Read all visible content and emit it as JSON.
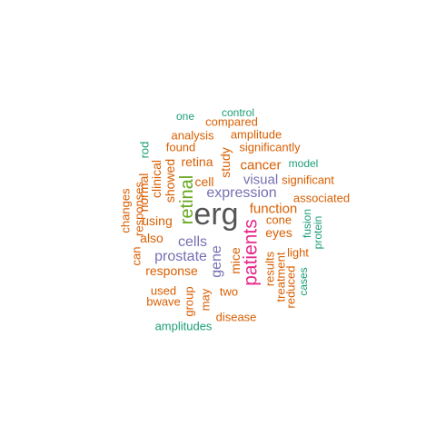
{
  "word_cloud": {
    "palette": {
      "teal": "#1b9e77",
      "orange": "#d95f02",
      "purple": "#7570b3",
      "pink": "#e7298a",
      "green": "#66a61e",
      "gray": "#555555"
    },
    "words": [
      {
        "text": "erg"
      },
      {
        "text": "patients"
      },
      {
        "text": "retinal"
      },
      {
        "text": "expression"
      },
      {
        "text": "cells"
      },
      {
        "text": "prostate"
      },
      {
        "text": "gene"
      },
      {
        "text": "function"
      },
      {
        "text": "cancer"
      },
      {
        "text": "visual"
      },
      {
        "text": "eyes"
      },
      {
        "text": "study"
      },
      {
        "text": "retina"
      },
      {
        "text": "cell"
      },
      {
        "text": "mice"
      },
      {
        "text": "showed"
      },
      {
        "text": "clinical"
      },
      {
        "text": "normal"
      },
      {
        "text": "using"
      },
      {
        "text": "also"
      },
      {
        "text": "response"
      },
      {
        "text": "responses"
      },
      {
        "text": "changes"
      },
      {
        "text": "can"
      },
      {
        "text": "rod"
      },
      {
        "text": "found"
      },
      {
        "text": "analysis"
      },
      {
        "text": "amplitude"
      },
      {
        "text": "significantly"
      },
      {
        "text": "compared"
      },
      {
        "text": "control"
      },
      {
        "text": "one"
      },
      {
        "text": "model"
      },
      {
        "text": "significant"
      },
      {
        "text": "associated"
      },
      {
        "text": "cone"
      },
      {
        "text": "fusion"
      },
      {
        "text": "protein"
      },
      {
        "text": "light"
      },
      {
        "text": "results"
      },
      {
        "text": "treatment"
      },
      {
        "text": "reduced"
      },
      {
        "text": "cases"
      },
      {
        "text": "two"
      },
      {
        "text": "may"
      },
      {
        "text": "group"
      },
      {
        "text": "used"
      },
      {
        "text": "bwave"
      },
      {
        "text": "disease"
      },
      {
        "text": "amplitudes"
      }
    ]
  }
}
